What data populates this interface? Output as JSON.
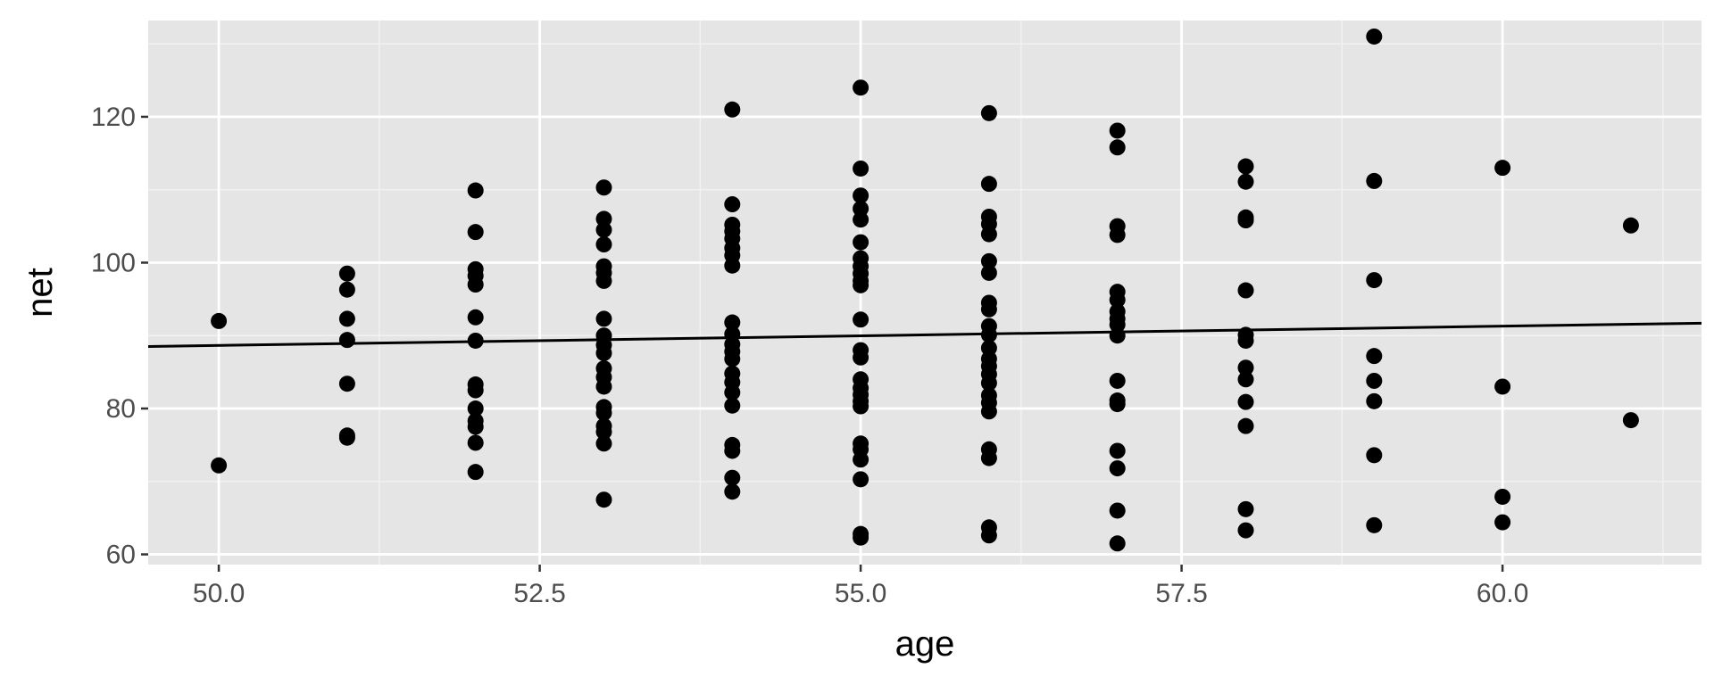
{
  "colors": {
    "panel_background": "#e5e5e5",
    "grid_major": "#ffffff",
    "grid_minor": "#f2f2f2",
    "point": "#000000",
    "fit_line": "#000000",
    "tick_text": "#4d4d4d",
    "tick_mark": "#333333",
    "axis_title": "#000000",
    "page_background": "#ffffff"
  },
  "chart_data": {
    "type": "scatter",
    "title": "",
    "xlabel": "age",
    "ylabel": "net",
    "xlim": [
      49.45,
      61.55
    ],
    "ylim": [
      58.6,
      133.2
    ],
    "grid": true,
    "legend": "none",
    "x_ticks": [
      50.0,
      52.5,
      55.0,
      57.5,
      60.0
    ],
    "x_tick_labels": [
      "50.0",
      "52.5",
      "55.0",
      "57.5",
      "60.0"
    ],
    "x_minor_ticks": [
      51.25,
      53.75,
      56.25,
      58.75,
      61.25
    ],
    "y_ticks": [
      60,
      80,
      100,
      120
    ],
    "y_tick_labels": [
      "60",
      "80",
      "100",
      "120"
    ],
    "y_minor_ticks": [
      70,
      90,
      110,
      130
    ],
    "trend_line": {
      "x": [
        49.45,
        61.55
      ],
      "y": [
        88.5,
        91.7
      ]
    },
    "points": [
      {
        "x": 50,
        "y": 92.0
      },
      {
        "x": 50,
        "y": 72.2
      },
      {
        "x": 51,
        "y": 98.5
      },
      {
        "x": 51,
        "y": 96.3
      },
      {
        "x": 51,
        "y": 92.3
      },
      {
        "x": 51,
        "y": 89.4
      },
      {
        "x": 51,
        "y": 83.4
      },
      {
        "x": 51,
        "y": 76.3
      },
      {
        "x": 51,
        "y": 76.0
      },
      {
        "x": 52,
        "y": 109.9
      },
      {
        "x": 52,
        "y": 104.2
      },
      {
        "x": 52,
        "y": 99.1
      },
      {
        "x": 52,
        "y": 98.2
      },
      {
        "x": 52,
        "y": 97.0
      },
      {
        "x": 52,
        "y": 92.5
      },
      {
        "x": 52,
        "y": 89.3
      },
      {
        "x": 52,
        "y": 83.3
      },
      {
        "x": 52,
        "y": 82.5
      },
      {
        "x": 52,
        "y": 80.0
      },
      {
        "x": 52,
        "y": 78.3
      },
      {
        "x": 52,
        "y": 77.5
      },
      {
        "x": 52,
        "y": 75.3
      },
      {
        "x": 52,
        "y": 71.3
      },
      {
        "x": 53,
        "y": 110.3
      },
      {
        "x": 53,
        "y": 106.0
      },
      {
        "x": 53,
        "y": 104.5
      },
      {
        "x": 53,
        "y": 102.5
      },
      {
        "x": 53,
        "y": 99.5
      },
      {
        "x": 53,
        "y": 98.6
      },
      {
        "x": 53,
        "y": 97.5
      },
      {
        "x": 53,
        "y": 92.3
      },
      {
        "x": 53,
        "y": 90.0
      },
      {
        "x": 53,
        "y": 88.7
      },
      {
        "x": 53,
        "y": 87.6
      },
      {
        "x": 53,
        "y": 85.5
      },
      {
        "x": 53,
        "y": 84.3
      },
      {
        "x": 53,
        "y": 83.0
      },
      {
        "x": 53,
        "y": 80.2
      },
      {
        "x": 53,
        "y": 79.4
      },
      {
        "x": 53,
        "y": 77.6
      },
      {
        "x": 53,
        "y": 76.8
      },
      {
        "x": 53,
        "y": 75.2
      },
      {
        "x": 53,
        "y": 67.5
      },
      {
        "x": 54,
        "y": 121.0
      },
      {
        "x": 54,
        "y": 108.0
      },
      {
        "x": 54,
        "y": 105.2
      },
      {
        "x": 54,
        "y": 104.3
      },
      {
        "x": 54,
        "y": 103.3
      },
      {
        "x": 54,
        "y": 102.0
      },
      {
        "x": 54,
        "y": 101.0
      },
      {
        "x": 54,
        "y": 99.6
      },
      {
        "x": 54,
        "y": 91.8
      },
      {
        "x": 54,
        "y": 90.2
      },
      {
        "x": 54,
        "y": 88.8
      },
      {
        "x": 54,
        "y": 87.8
      },
      {
        "x": 54,
        "y": 86.8
      },
      {
        "x": 54,
        "y": 84.8
      },
      {
        "x": 54,
        "y": 83.6
      },
      {
        "x": 54,
        "y": 82.2
      },
      {
        "x": 54,
        "y": 80.4
      },
      {
        "x": 54,
        "y": 75.0
      },
      {
        "x": 54,
        "y": 74.2
      },
      {
        "x": 54,
        "y": 70.5
      },
      {
        "x": 54,
        "y": 68.6
      },
      {
        "x": 55,
        "y": 124.0
      },
      {
        "x": 55,
        "y": 112.9
      },
      {
        "x": 55,
        "y": 109.2
      },
      {
        "x": 55,
        "y": 107.4
      },
      {
        "x": 55,
        "y": 105.9
      },
      {
        "x": 55,
        "y": 102.8
      },
      {
        "x": 55,
        "y": 100.6
      },
      {
        "x": 55,
        "y": 99.5
      },
      {
        "x": 55,
        "y": 98.5
      },
      {
        "x": 55,
        "y": 97.5
      },
      {
        "x": 55,
        "y": 96.9
      },
      {
        "x": 55,
        "y": 92.2
      },
      {
        "x": 55,
        "y": 88.0
      },
      {
        "x": 55,
        "y": 87.0
      },
      {
        "x": 55,
        "y": 84.0
      },
      {
        "x": 55,
        "y": 82.8
      },
      {
        "x": 55,
        "y": 81.9
      },
      {
        "x": 55,
        "y": 81.0
      },
      {
        "x": 55,
        "y": 80.3
      },
      {
        "x": 55,
        "y": 75.2
      },
      {
        "x": 55,
        "y": 74.4
      },
      {
        "x": 55,
        "y": 73.0
      },
      {
        "x": 55,
        "y": 70.3
      },
      {
        "x": 55,
        "y": 62.8
      },
      {
        "x": 55,
        "y": 62.3
      },
      {
        "x": 56,
        "y": 120.5
      },
      {
        "x": 56,
        "y": 110.8
      },
      {
        "x": 56,
        "y": 106.3
      },
      {
        "x": 56,
        "y": 105.3
      },
      {
        "x": 56,
        "y": 103.9
      },
      {
        "x": 56,
        "y": 100.2
      },
      {
        "x": 56,
        "y": 98.6
      },
      {
        "x": 56,
        "y": 94.5
      },
      {
        "x": 56,
        "y": 93.6
      },
      {
        "x": 56,
        "y": 91.3
      },
      {
        "x": 56,
        "y": 90.1
      },
      {
        "x": 56,
        "y": 88.3
      },
      {
        "x": 56,
        "y": 86.8
      },
      {
        "x": 56,
        "y": 85.8
      },
      {
        "x": 56,
        "y": 84.7
      },
      {
        "x": 56,
        "y": 83.5
      },
      {
        "x": 56,
        "y": 81.8
      },
      {
        "x": 56,
        "y": 80.8
      },
      {
        "x": 56,
        "y": 79.6
      },
      {
        "x": 56,
        "y": 74.4
      },
      {
        "x": 56,
        "y": 73.2
      },
      {
        "x": 56,
        "y": 63.7
      },
      {
        "x": 56,
        "y": 62.6
      },
      {
        "x": 57,
        "y": 118.1
      },
      {
        "x": 57,
        "y": 115.8
      },
      {
        "x": 57,
        "y": 105.0
      },
      {
        "x": 57,
        "y": 103.8
      },
      {
        "x": 57,
        "y": 96.0
      },
      {
        "x": 57,
        "y": 94.9
      },
      {
        "x": 57,
        "y": 93.3
      },
      {
        "x": 57,
        "y": 92.3
      },
      {
        "x": 57,
        "y": 91.5
      },
      {
        "x": 57,
        "y": 90.0
      },
      {
        "x": 57,
        "y": 83.8
      },
      {
        "x": 57,
        "y": 81.1
      },
      {
        "x": 57,
        "y": 80.6
      },
      {
        "x": 57,
        "y": 74.2
      },
      {
        "x": 57,
        "y": 71.8
      },
      {
        "x": 57,
        "y": 66.0
      },
      {
        "x": 57,
        "y": 61.5
      },
      {
        "x": 58,
        "y": 113.2
      },
      {
        "x": 58,
        "y": 111.1
      },
      {
        "x": 58,
        "y": 106.2
      },
      {
        "x": 58,
        "y": 105.8
      },
      {
        "x": 58,
        "y": 96.2
      },
      {
        "x": 58,
        "y": 90.1
      },
      {
        "x": 58,
        "y": 89.3
      },
      {
        "x": 58,
        "y": 85.6
      },
      {
        "x": 58,
        "y": 84.0
      },
      {
        "x": 58,
        "y": 80.9
      },
      {
        "x": 58,
        "y": 77.6
      },
      {
        "x": 58,
        "y": 66.2
      },
      {
        "x": 58,
        "y": 63.3
      },
      {
        "x": 59,
        "y": 131.0
      },
      {
        "x": 59,
        "y": 111.2
      },
      {
        "x": 59,
        "y": 97.6
      },
      {
        "x": 59,
        "y": 87.2
      },
      {
        "x": 59,
        "y": 83.8
      },
      {
        "x": 59,
        "y": 81.0
      },
      {
        "x": 59,
        "y": 73.6
      },
      {
        "x": 59,
        "y": 64.0
      },
      {
        "x": 60,
        "y": 113.0
      },
      {
        "x": 60,
        "y": 83.0
      },
      {
        "x": 60,
        "y": 67.9
      },
      {
        "x": 60,
        "y": 64.4
      },
      {
        "x": 61,
        "y": 105.1
      },
      {
        "x": 61,
        "y": 78.4
      }
    ]
  }
}
